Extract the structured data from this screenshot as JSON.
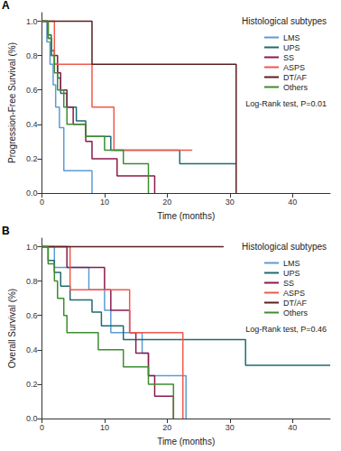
{
  "chart_data": [
    {
      "type": "line",
      "panel_label": "A",
      "y_label": "Progression-Free Survival (%)",
      "x_label": "Time (months)",
      "legend_title": "Histological subtypes",
      "legend": "upper right",
      "annotation": "Log-Rank test, P=0.01",
      "grid": false,
      "xlim": [
        0,
        46
      ],
      "xticks": [
        0,
        10,
        20,
        30,
        40
      ],
      "ylim": [
        0,
        1.05
      ],
      "yticks": [
        {
          "value": 0,
          "label": "0.0"
        },
        {
          "value": 0.2,
          "label": "0.2"
        },
        {
          "value": 0.4,
          "label": "0.4"
        },
        {
          "value": 0.6,
          "label": "0.6"
        },
        {
          "value": 0.8,
          "label": "0.8"
        },
        {
          "value": 1,
          "label": "1.0"
        }
      ],
      "series": [
        {
          "name": "LMS",
          "color": "#5b9bd5",
          "x": [
            0,
            0.8,
            1.3,
            1.8,
            2.2,
            2.8,
            3.5,
            8
          ],
          "values": [
            1,
            0.88,
            0.75,
            0.63,
            0.5,
            0.38,
            0.13,
            0
          ]
        },
        {
          "name": "UPS",
          "color": "#1f6b6e",
          "x": [
            0,
            1,
            1.5,
            2,
            2.5,
            3,
            4,
            5.5,
            7,
            11,
            22,
            31
          ],
          "values": [
            1,
            0.92,
            0.83,
            0.75,
            0.67,
            0.58,
            0.5,
            0.42,
            0.33,
            0.25,
            0.17,
            0.17
          ]
        },
        {
          "name": "SS",
          "color": "#8b1a4a",
          "x": [
            0,
            1,
            1.5,
            2.5,
            3,
            4,
            5,
            7,
            8,
            12,
            18
          ],
          "values": [
            1,
            0.9,
            0.8,
            0.7,
            0.6,
            0.5,
            0.4,
            0.3,
            0.2,
            0.1,
            0
          ]
        },
        {
          "name": "ASPS",
          "color": "#f0584a",
          "x": [
            0,
            2,
            8,
            11.5,
            24
          ],
          "values": [
            1,
            0.75,
            0.5,
            0.25,
            0.25
          ]
        },
        {
          "name": "DT/AF",
          "color": "#5a1e1e",
          "x": [
            0,
            8,
            31
          ],
          "values": [
            1,
            0.75,
            0
          ]
        },
        {
          "name": "Others",
          "color": "#3c8d2f",
          "x": [
            0,
            1,
            1.5,
            2,
            2.5,
            3.5,
            4,
            7,
            10,
            13,
            17
          ],
          "values": [
            1,
            0.9,
            0.8,
            0.7,
            0.6,
            0.5,
            0.4,
            0.33,
            0.25,
            0.17,
            0
          ]
        }
      ]
    },
    {
      "type": "line",
      "panel_label": "B",
      "y_label": "Overall Survival (%)",
      "x_label": "Time (months)",
      "legend_title": "Histological subtypes",
      "legend": "upper right",
      "annotation": "Log-Rank test, P=0.46",
      "grid": false,
      "xlim": [
        0,
        46
      ],
      "xticks": [
        0,
        10,
        20,
        30,
        40
      ],
      "ylim": [
        0,
        1.05
      ],
      "yticks": [
        {
          "value": 0,
          "label": "0.0"
        },
        {
          "value": 0.2,
          "label": "0.2"
        },
        {
          "value": 0.4,
          "label": "0.4"
        },
        {
          "value": 0.6,
          "label": "0.6"
        },
        {
          "value": 0.8,
          "label": "0.8"
        },
        {
          "value": 1,
          "label": "1.0"
        }
      ],
      "series": [
        {
          "name": "LMS",
          "color": "#5b9bd5",
          "x": [
            0,
            2,
            7.5,
            10,
            11,
            16,
            17,
            23
          ],
          "values": [
            1,
            0.88,
            0.75,
            0.63,
            0.5,
            0.38,
            0.25,
            0
          ]
        },
        {
          "name": "UPS",
          "color": "#1f6b6e",
          "x": [
            0,
            1,
            2,
            3,
            4.5,
            8,
            9.5,
            13,
            32.5,
            46
          ],
          "values": [
            1,
            0.92,
            0.85,
            0.77,
            0.69,
            0.62,
            0.54,
            0.46,
            0.31,
            0.31
          ]
        },
        {
          "name": "SS",
          "color": "#8b1a4a",
          "x": [
            0,
            4,
            10,
            11,
            14,
            15,
            17,
            18,
            21
          ],
          "values": [
            1,
            0.88,
            0.75,
            0.63,
            0.5,
            0.38,
            0.25,
            0.13,
            0
          ]
        },
        {
          "name": "ASPS",
          "color": "#f0584a",
          "x": [
            0,
            4.5,
            14,
            22.5
          ],
          "values": [
            1,
            0.75,
            0.5,
            0
          ]
        },
        {
          "name": "DT/AF",
          "color": "#5a1e1e",
          "x": [
            0,
            29
          ],
          "values": [
            1,
            1
          ]
        },
        {
          "name": "Others",
          "color": "#3c8d2f",
          "x": [
            0,
            1,
            2,
            2.5,
            3.5,
            4,
            9,
            13,
            17,
            21
          ],
          "values": [
            1,
            0.9,
            0.8,
            0.7,
            0.6,
            0.5,
            0.4,
            0.3,
            0.2,
            0
          ]
        }
      ]
    }
  ]
}
